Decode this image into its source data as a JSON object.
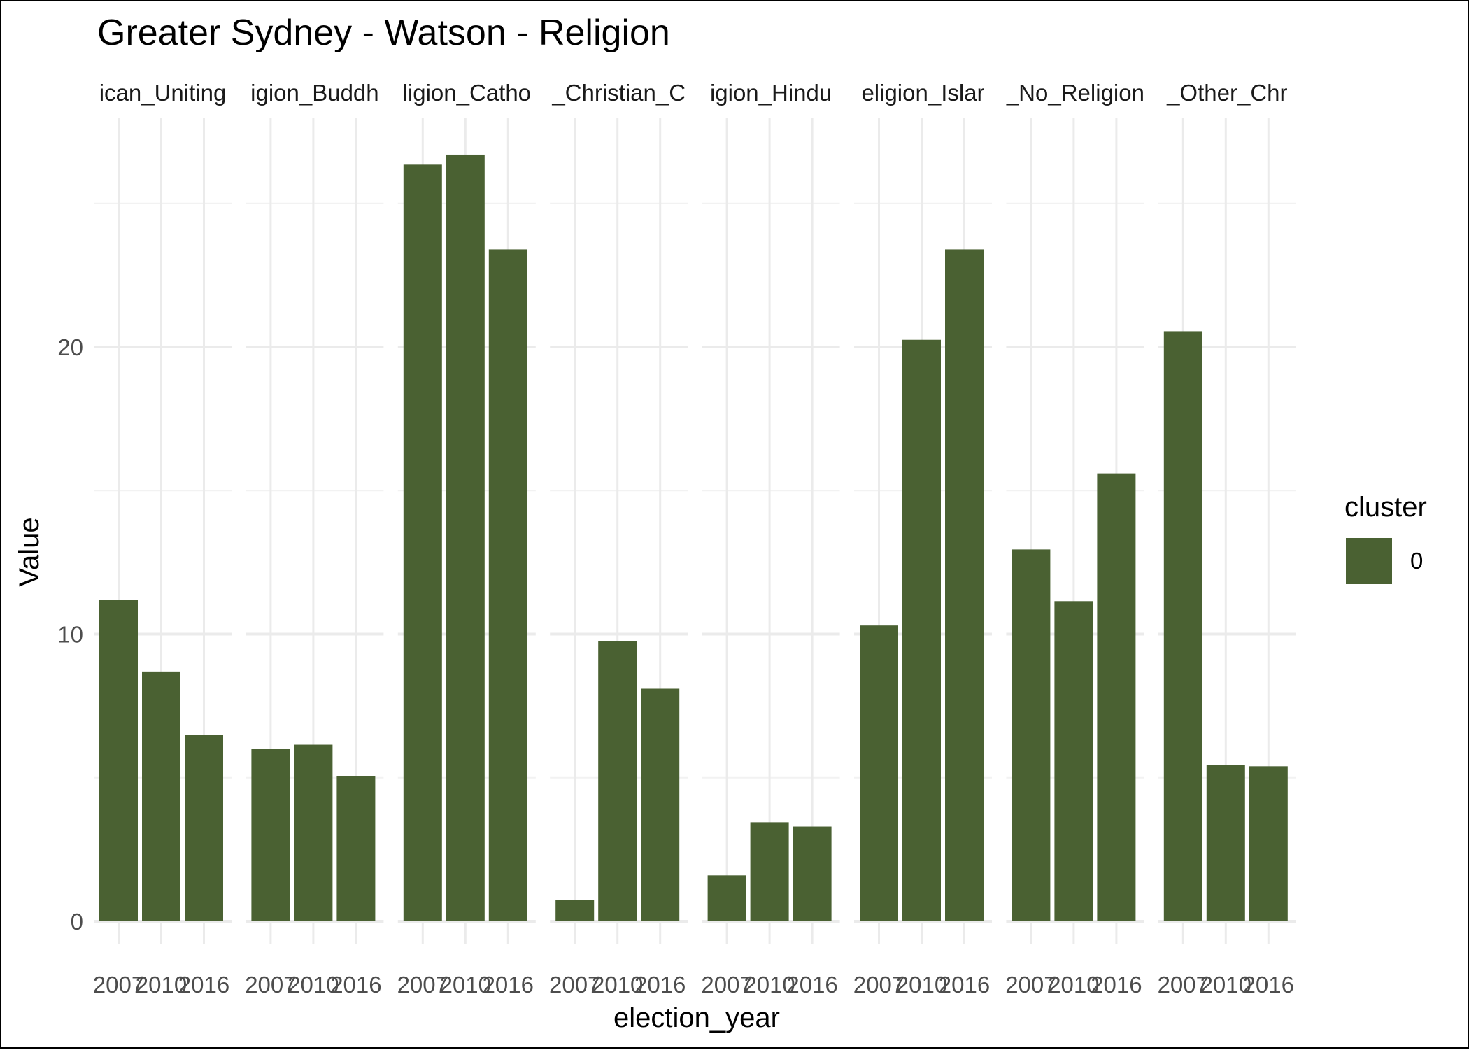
{
  "chart_data": {
    "type": "bar",
    "title": "Greater Sydney - Watson - Religion",
    "xlabel": "election_year",
    "ylabel": "Value",
    "ylim": [
      0,
      27
    ],
    "y_ticks": [
      0,
      10,
      20
    ],
    "grid": true,
    "bar_color": "#4a6132",
    "categories": [
      "2007",
      "2010",
      "2016"
    ],
    "facets": [
      {
        "label": "Religion_Anglican_Uniting",
        "visible_label": "ican_Uniting",
        "values": [
          11.2,
          8.7,
          6.5
        ]
      },
      {
        "label": "Religion_Buddhism",
        "visible_label": "igion_Buddh",
        "values": [
          6.0,
          6.15,
          5.05
        ]
      },
      {
        "label": "Religion_Catholic",
        "visible_label": "ligion_Catho",
        "values": [
          26.35,
          26.7,
          23.4
        ]
      },
      {
        "label": "Religion_Christian_Other",
        "visible_label": "_Christian_C",
        "values": [
          0.75,
          9.75,
          8.1
        ]
      },
      {
        "label": "Religion_Hinduism",
        "visible_label": "igion_Hindu",
        "values": [
          1.6,
          3.45,
          3.3
        ]
      },
      {
        "label": "Religion_Islam",
        "visible_label": "eligion_Islar",
        "values": [
          10.3,
          20.25,
          23.4
        ]
      },
      {
        "label": "Religion_No_Religion",
        "visible_label": "_No_Religion",
        "values": [
          12.95,
          11.15,
          15.6
        ]
      },
      {
        "label": "Religion_Other_Christian",
        "visible_label": "_Other_Chr",
        "values": [
          20.55,
          5.45,
          5.4
        ]
      }
    ],
    "legend": {
      "title": "cluster",
      "entries": [
        "0"
      ],
      "position": "right"
    }
  }
}
